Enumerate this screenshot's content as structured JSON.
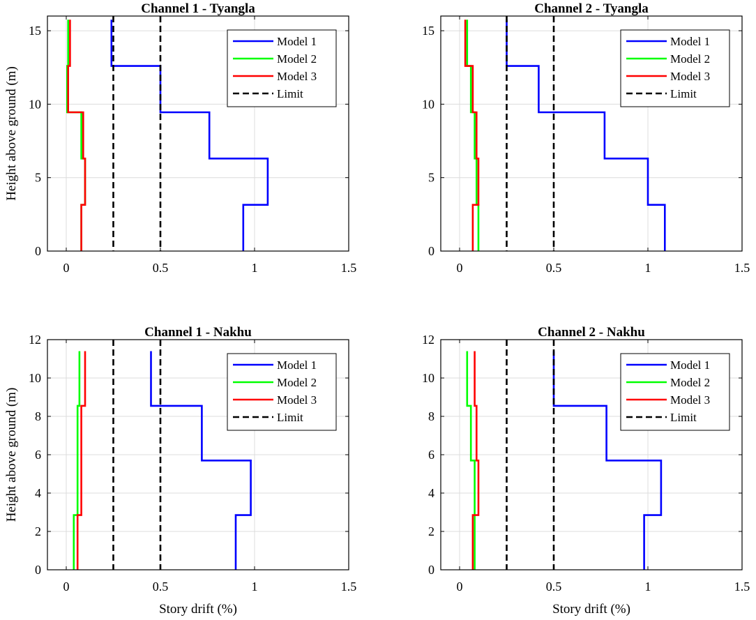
{
  "chart_data": [
    {
      "type": "line",
      "title": "Channel 1 - Tyangla",
      "xlabel": "",
      "ylabel": "Height above ground (m)",
      "xlim": [
        -0.1,
        1.5
      ],
      "ylim": [
        0,
        16
      ],
      "xticks": [
        0,
        0.5,
        1,
        1.5
      ],
      "xtick_labels": [
        "0",
        "0.5",
        "1",
        "1.5"
      ],
      "yticks": [
        0,
        5,
        10,
        15
      ],
      "ytick_labels": [
        "0",
        "5",
        "10",
        "15"
      ],
      "grid": true,
      "legend": "top-right",
      "levels": [
        0,
        3.15,
        6.3,
        9.45,
        12.6,
        15.75
      ],
      "series": [
        {
          "name": "Model 1",
          "color": "#0000ff",
          "drift": [
            0.94,
            1.07,
            0.76,
            0.5,
            0.24
          ]
        },
        {
          "name": "Model 2",
          "color": "#00ff00",
          "drift": [
            0.08,
            0.1,
            0.08,
            0.005,
            0.01
          ]
        },
        {
          "name": "Model 3",
          "color": "#ff0000",
          "drift": [
            0.08,
            0.1,
            0.09,
            0.01,
            0.02
          ]
        },
        {
          "name": "Limit",
          "color": "#000000",
          "dashed": true,
          "x": [
            0.25,
            0.5
          ]
        }
      ]
    },
    {
      "type": "line",
      "title": "Channel 2 - Tyangla",
      "xlabel": "",
      "ylabel": "",
      "xlim": [
        -0.1,
        1.5
      ],
      "ylim": [
        0,
        16
      ],
      "xticks": [
        0,
        0.5,
        1,
        1.5
      ],
      "xtick_labels": [
        "0",
        "0.5",
        "1",
        "1.5"
      ],
      "yticks": [
        0,
        5,
        10,
        15
      ],
      "ytick_labels": [
        "0",
        "5",
        "10",
        "15"
      ],
      "grid": true,
      "legend": "top-right",
      "levels": [
        0,
        3.15,
        6.3,
        9.45,
        12.6,
        15.75
      ],
      "series": [
        {
          "name": "Model 1",
          "color": "#0000ff",
          "drift": [
            1.09,
            1.0,
            0.77,
            0.42,
            0.25
          ]
        },
        {
          "name": "Model 2",
          "color": "#00ff00",
          "drift": [
            0.1,
            0.09,
            0.08,
            0.06,
            0.04
          ]
        },
        {
          "name": "Model 3",
          "color": "#ff0000",
          "drift": [
            0.07,
            0.1,
            0.09,
            0.07,
            0.03
          ]
        },
        {
          "name": "Limit",
          "color": "#000000",
          "dashed": true,
          "x": [
            0.25,
            0.5
          ]
        }
      ]
    },
    {
      "type": "line",
      "title": "Channel 1 - Nakhu",
      "xlabel": "Story drift (%)",
      "ylabel": "Height above ground (m)",
      "xlim": [
        -0.1,
        1.5
      ],
      "ylim": [
        0,
        12
      ],
      "xticks": [
        0,
        0.5,
        1,
        1.5
      ],
      "xtick_labels": [
        "0",
        "0.5",
        "1",
        "1.5"
      ],
      "yticks": [
        0,
        2,
        4,
        6,
        8,
        10,
        12
      ],
      "ytick_labels": [
        "0",
        "2",
        "4",
        "6",
        "8",
        "10",
        "12"
      ],
      "grid": true,
      "legend": "top-right",
      "levels": [
        0,
        2.85,
        5.7,
        8.55,
        11.4
      ],
      "series": [
        {
          "name": "Model 1",
          "color": "#0000ff",
          "drift": [
            0.9,
            0.98,
            0.72,
            0.45
          ]
        },
        {
          "name": "Model 2",
          "color": "#00ff00",
          "drift": [
            0.04,
            0.06,
            0.06,
            0.07
          ]
        },
        {
          "name": "Model 3",
          "color": "#ff0000",
          "drift": [
            0.06,
            0.08,
            0.08,
            0.1
          ]
        },
        {
          "name": "Limit",
          "color": "#000000",
          "dashed": true,
          "x": [
            0.25,
            0.5
          ]
        }
      ]
    },
    {
      "type": "line",
      "title": "Channel 2 - Nakhu",
      "xlabel": "Story drift (%)",
      "ylabel": "",
      "xlim": [
        -0.1,
        1.5
      ],
      "ylim": [
        0,
        12
      ],
      "xticks": [
        0,
        0.5,
        1,
        1.5
      ],
      "xtick_labels": [
        "0",
        "0.5",
        "1",
        "1.5"
      ],
      "yticks": [
        0,
        2,
        4,
        6,
        8,
        10,
        12
      ],
      "ytick_labels": [
        "0",
        "2",
        "4",
        "6",
        "8",
        "10",
        "12"
      ],
      "grid": true,
      "legend": "top-right",
      "levels": [
        0,
        2.85,
        5.7,
        8.55,
        11.4
      ],
      "series": [
        {
          "name": "Model 1",
          "color": "#0000ff",
          "drift": [
            0.98,
            1.07,
            0.78,
            0.5
          ]
        },
        {
          "name": "Model 2",
          "color": "#00ff00",
          "drift": [
            0.08,
            0.08,
            0.06,
            0.04
          ]
        },
        {
          "name": "Model 3",
          "color": "#ff0000",
          "drift": [
            0.07,
            0.1,
            0.09,
            0.08
          ]
        },
        {
          "name": "Limit",
          "color": "#000000",
          "dashed": true,
          "x": [
            0.25,
            0.5
          ]
        }
      ]
    }
  ]
}
